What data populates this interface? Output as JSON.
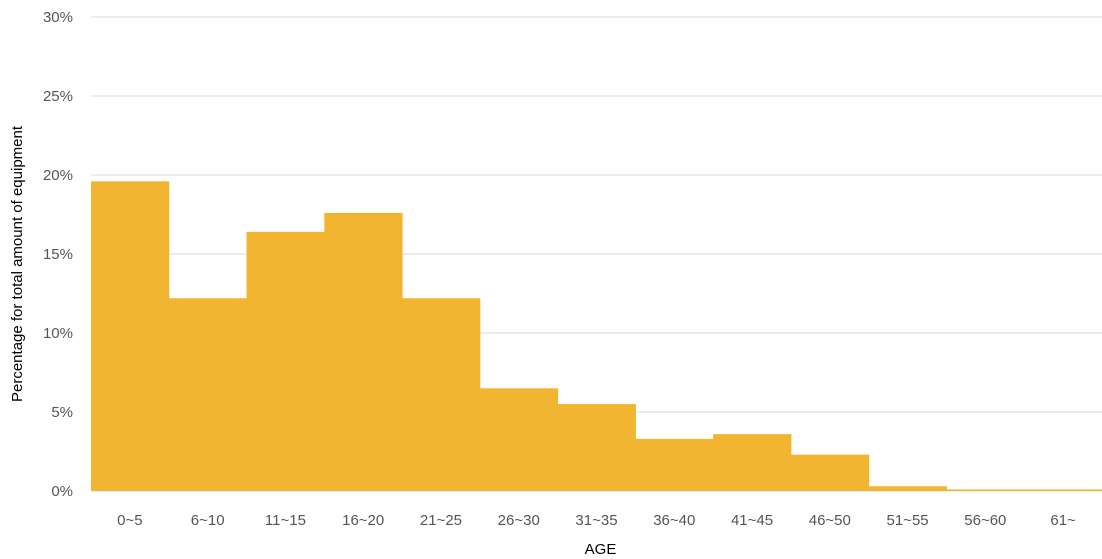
{
  "chart_data": {
    "type": "bar",
    "title": "",
    "xlabel": "AGE",
    "ylabel": "Percentage for total amount of equipment",
    "categories": [
      "0~5",
      "6~10",
      "11~15",
      "16~20",
      "21~25",
      "26~30",
      "31~35",
      "36~40",
      "41~45",
      "46~50",
      "51~55",
      "56~60",
      "61~"
    ],
    "values": [
      19.6,
      12.2,
      16.4,
      17.6,
      12.2,
      6.5,
      5.5,
      3.3,
      3.6,
      2.3,
      0.3,
      0.1,
      0.1
    ],
    "ylim": [
      0,
      30
    ],
    "yticks": [
      "0%",
      "5%",
      "10%",
      "15%",
      "20%",
      "25%",
      "30%"
    ],
    "ytick_values": [
      0,
      5,
      10,
      15,
      20,
      25,
      30
    ],
    "grid": true,
    "legend": "none",
    "bar_color": "#F2B531",
    "grid_color": "#D9D9D9"
  }
}
